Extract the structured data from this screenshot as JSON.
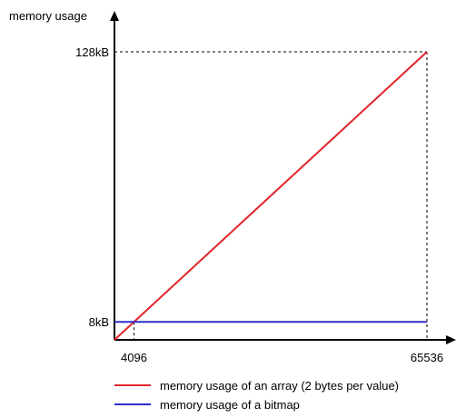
{
  "chart_data": {
    "type": "line",
    "title": "",
    "ylabel": "memory usage",
    "xlabel": "",
    "xlim": [
      0,
      65536
    ],
    "ylim": [
      0,
      131072
    ],
    "x_ticks": [
      {
        "value": 4096,
        "label": "4096"
      },
      {
        "value": 65536,
        "label": "65536"
      }
    ],
    "y_ticks": [
      {
        "value": 8192,
        "label": "8kB"
      },
      {
        "value": 131072,
        "label": "128kB"
      }
    ],
    "grid": false,
    "legend_position": "bottom",
    "series": [
      {
        "name": "memory usage of an array (2 bytes per value)",
        "color": "#e0262b",
        "x": [
          0,
          65536
        ],
        "y": [
          0,
          131072
        ]
      },
      {
        "name": "memory usage of a bitmap",
        "color": "#2c2ec9",
        "x": [
          0,
          65536
        ],
        "y": [
          8192,
          8192
        ]
      }
    ]
  }
}
